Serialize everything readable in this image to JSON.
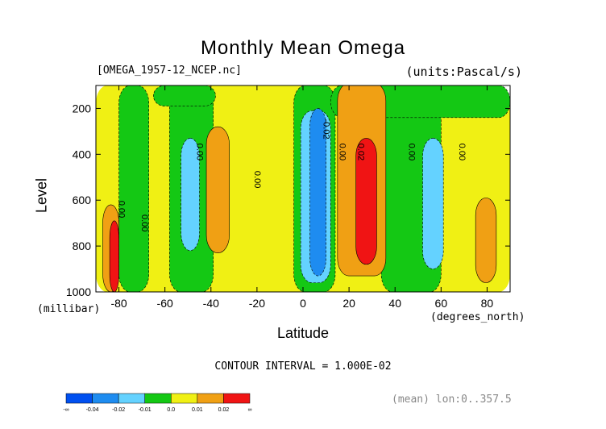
{
  "chart_data": {
    "type": "heatmap",
    "title": "Monthly Mean Omega",
    "file_label": "[OMEGA_1957-12_NCEP.nc]",
    "units_label": "(units:Pascal/s)",
    "xlabel": "Latitude",
    "xunit": "(degrees_north)",
    "ylabel": "Level",
    "yunit": "(millibar)",
    "xlim": [
      -90,
      90
    ],
    "ylim": [
      1000,
      100
    ],
    "x_ticks": [
      -80,
      -60,
      -40,
      -20,
      0,
      20,
      40,
      60,
      80
    ],
    "y_ticks": [
      200,
      400,
      600,
      800,
      1000
    ],
    "contour_interval": "CONTOUR INTERVAL = 1.000E-02",
    "mean_note": "(mean) lon:0..357.5",
    "colorbar": {
      "labels": [
        "-∞",
        "-0.04",
        "-0.02",
        "-0.01",
        "0.0",
        "0.01",
        "0.02",
        "∞"
      ],
      "colors": [
        "#0050f0",
        "#1e8cf0",
        "#64d2ff",
        "#14c814",
        "#f0f014",
        "#f0a014",
        "#f01414"
      ]
    },
    "contour_labels": [
      {
        "text": "0.00",
        "x": -80,
        "y": 640
      },
      {
        "text": "0.00",
        "x": -70,
        "y": 700
      },
      {
        "text": "0.00",
        "x": -46,
        "y": 390
      },
      {
        "text": "0.00",
        "x": -21,
        "y": 510
      },
      {
        "text": "-0.02",
        "x": 9,
        "y": 290
      },
      {
        "text": "0.00",
        "x": 16,
        "y": 390
      },
      {
        "text": "0.02",
        "x": 24,
        "y": 390
      },
      {
        "text": "0.00",
        "x": 46,
        "y": 390
      },
      {
        "text": "0.00",
        "x": 68,
        "y": 390
      }
    ],
    "regions": [
      {
        "level": "0.0",
        "color": "#f0f014",
        "lat": [
          -90,
          90
        ],
        "p": [
          100,
          1000
        ]
      },
      {
        "level": "-0.01",
        "color": "#14c814",
        "lat": [
          -80,
          -67
        ],
        "p": [
          100,
          1000
        ]
      },
      {
        "level": "-0.01",
        "color": "#14c814",
        "lat": [
          -58,
          -39
        ],
        "p": [
          100,
          1000
        ]
      },
      {
        "level": "-0.01",
        "color": "#14c814",
        "lat": [
          -4,
          14
        ],
        "p": [
          100,
          1000
        ]
      },
      {
        "level": "-0.01",
        "color": "#14c814",
        "lat": [
          34,
          60
        ],
        "p": [
          100,
          1000
        ]
      },
      {
        "level": "-0.01",
        "color": "#14c814",
        "lat": [
          12,
          90
        ],
        "p": [
          100,
          240
        ]
      },
      {
        "level": "-0.01",
        "color": "#14c814",
        "lat": [
          -65,
          -38
        ],
        "p": [
          100,
          190
        ]
      },
      {
        "level": "-0.02",
        "color": "#64d2ff",
        "lat": [
          -53,
          -45
        ],
        "p": [
          330,
          820
        ]
      },
      {
        "level": "-0.02",
        "color": "#64d2ff",
        "lat": [
          -1,
          12
        ],
        "p": [
          210,
          960
        ]
      },
      {
        "level": "-0.02",
        "color": "#64d2ff",
        "lat": [
          52,
          61
        ],
        "p": [
          330,
          900
        ]
      },
      {
        "level": "-0.04",
        "color": "#1e8cf0",
        "lat": [
          3,
          10
        ],
        "p": [
          200,
          930
        ]
      },
      {
        "level": "0.01",
        "color": "#f0a014",
        "lat": [
          -42,
          -32
        ],
        "p": [
          280,
          830
        ]
      },
      {
        "level": "0.01",
        "color": "#f0a014",
        "lat": [
          15,
          36
        ],
        "p": [
          90,
          930
        ]
      },
      {
        "level": "0.01",
        "color": "#f0a014",
        "lat": [
          -87,
          -80
        ],
        "p": [
          620,
          1000
        ]
      },
      {
        "level": "0.01",
        "color": "#f0a014",
        "lat": [
          75,
          84
        ],
        "p": [
          590,
          960
        ]
      },
      {
        "level": "0.02",
        "color": "#f01414",
        "lat": [
          23,
          32
        ],
        "p": [
          330,
          880
        ]
      },
      {
        "level": "0.02",
        "color": "#f01414",
        "lat": [
          -84,
          -80
        ],
        "p": [
          690,
          1000
        ]
      }
    ]
  }
}
